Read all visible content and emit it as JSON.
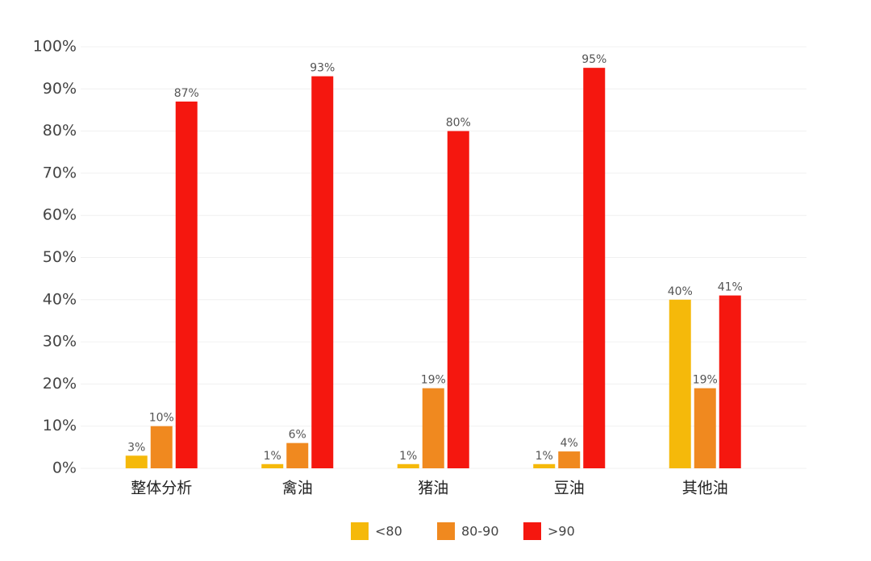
{
  "chart_data": {
    "type": "bar",
    "categories": [
      "整体分析",
      "禽油",
      "猪油",
      "豆油",
      "其他油"
    ],
    "series": [
      {
        "name": "<80",
        "color": "#f5b90a",
        "values": [
          3,
          1,
          1,
          1,
          40
        ],
        "value_labels": [
          "3%",
          "1%",
          "1%",
          "1%",
          "40%"
        ]
      },
      {
        "name": "80-90",
        "color": "#f0891f",
        "values": [
          10,
          6,
          19,
          4,
          19
        ],
        "value_labels": [
          "10%",
          "6%",
          "19%",
          "4%",
          "19%"
        ]
      },
      {
        "name": ">90",
        "color": "#f5170f",
        "values": [
          87,
          93,
          80,
          95,
          41
        ],
        "value_labels": [
          "87%",
          "93%",
          "80%",
          "95%",
          "41%"
        ]
      }
    ],
    "ylim": [
      0,
      100
    ],
    "yticks": [
      {
        "value": 0,
        "label": "0%"
      },
      {
        "value": 10,
        "label": "10%"
      },
      {
        "value": 20,
        "label": "20%"
      },
      {
        "value": 30,
        "label": "30%"
      },
      {
        "value": 40,
        "label": "40%"
      },
      {
        "value": 50,
        "label": "50%"
      },
      {
        "value": 60,
        "label": "60%"
      },
      {
        "value": 70,
        "label": "70%"
      },
      {
        "value": 80,
        "label": "80%"
      },
      {
        "value": 90,
        "label": "90%"
      },
      {
        "value": 100,
        "label": "100%"
      }
    ],
    "grid": true
  }
}
